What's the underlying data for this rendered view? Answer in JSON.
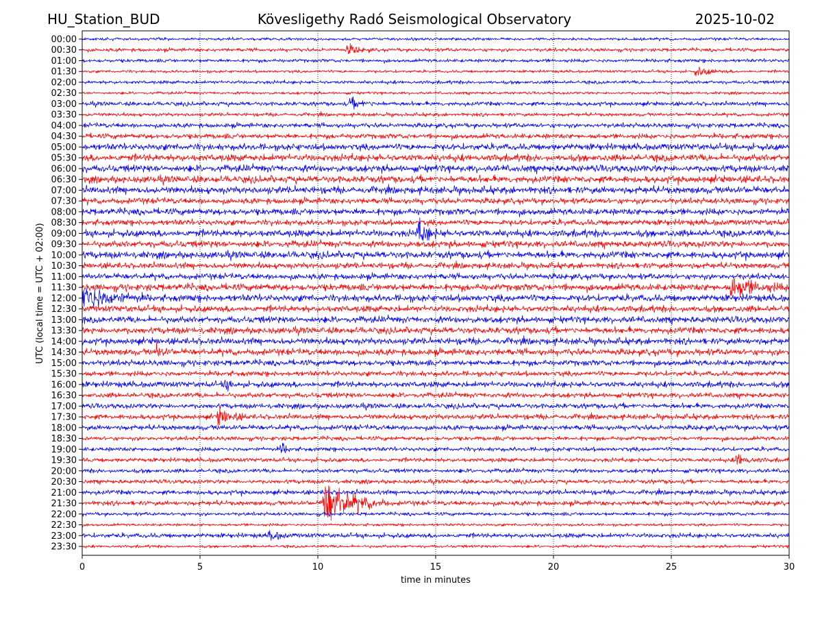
{
  "chart_data": {
    "type": "line",
    "title_left": "HU_Station_BUD",
    "title_center": "Kövesligethy Radó Seismological Observatory",
    "title_right": "2025-10-02",
    "xlabel": "time in minutes",
    "ylabel": "UTC (local time = UTC + 02:00)",
    "xlim": [
      0,
      30
    ],
    "xticks": [
      "0",
      "5",
      "10",
      "15",
      "20",
      "25",
      "30"
    ],
    "grid": "vertical dotted",
    "colors": [
      "#0000ff",
      "#ff0000"
    ],
    "row_labels": [
      "00:00",
      "00:30",
      "01:00",
      "01:30",
      "02:00",
      "02:30",
      "03:00",
      "03:30",
      "04:00",
      "04:30",
      "05:00",
      "05:30",
      "06:00",
      "06:30",
      "07:00",
      "07:30",
      "08:00",
      "08:30",
      "09:00",
      "09:30",
      "10:00",
      "10:30",
      "11:00",
      "11:30",
      "12:00",
      "12:30",
      "13:00",
      "13:30",
      "14:00",
      "14:30",
      "15:00",
      "15:30",
      "16:00",
      "16:30",
      "17:00",
      "17:30",
      "18:00",
      "18:30",
      "19:00",
      "19:30",
      "20:00",
      "20:30",
      "21:00",
      "21:30",
      "22:00",
      "22:30",
      "23:00",
      "23:30"
    ],
    "noise_level": [
      0.12,
      0.15,
      0.15,
      0.12,
      0.15,
      0.12,
      0.18,
      0.15,
      0.2,
      0.22,
      0.28,
      0.3,
      0.3,
      0.3,
      0.3,
      0.25,
      0.28,
      0.25,
      0.3,
      0.28,
      0.3,
      0.25,
      0.25,
      0.3,
      0.3,
      0.28,
      0.28,
      0.28,
      0.28,
      0.28,
      0.25,
      0.22,
      0.25,
      0.22,
      0.22,
      0.22,
      0.22,
      0.18,
      0.18,
      0.18,
      0.18,
      0.18,
      0.2,
      0.2,
      0.15,
      0.12,
      0.2,
      0.12
    ],
    "events": [
      {
        "row": "00:30",
        "start_min": 11.2,
        "duration_min": 1.2,
        "amplitude": 0.5
      },
      {
        "row": "01:30",
        "start_min": 26.0,
        "duration_min": 1.6,
        "amplitude": 0.45
      },
      {
        "row": "03:00",
        "start_min": 11.3,
        "duration_min": 1.6,
        "amplitude": 0.45
      },
      {
        "row": "09:00",
        "start_min": 14.2,
        "duration_min": 1.2,
        "amplitude": 1.2
      },
      {
        "row": "11:30",
        "start_min": 27.5,
        "duration_min": 2.5,
        "amplitude": 1.0
      },
      {
        "row": "12:00",
        "start_min": 0.0,
        "duration_min": 2.8,
        "amplitude": 1.4
      },
      {
        "row": "14:30",
        "start_min": 3.1,
        "duration_min": 0.7,
        "amplitude": 0.7
      },
      {
        "row": "16:00",
        "start_min": 6.0,
        "duration_min": 0.7,
        "amplitude": 0.6
      },
      {
        "row": "17:30",
        "start_min": 5.7,
        "duration_min": 1.4,
        "amplitude": 0.9
      },
      {
        "row": "19:00",
        "start_min": 8.4,
        "duration_min": 0.5,
        "amplitude": 0.9
      },
      {
        "row": "19:30",
        "start_min": 27.7,
        "duration_min": 1.3,
        "amplitude": 0.6
      },
      {
        "row": "21:30",
        "start_min": 10.2,
        "duration_min": 2.8,
        "amplitude": 2.6
      },
      {
        "row": "23:00",
        "start_min": 7.9,
        "duration_min": 0.9,
        "amplitude": 0.6
      }
    ]
  }
}
